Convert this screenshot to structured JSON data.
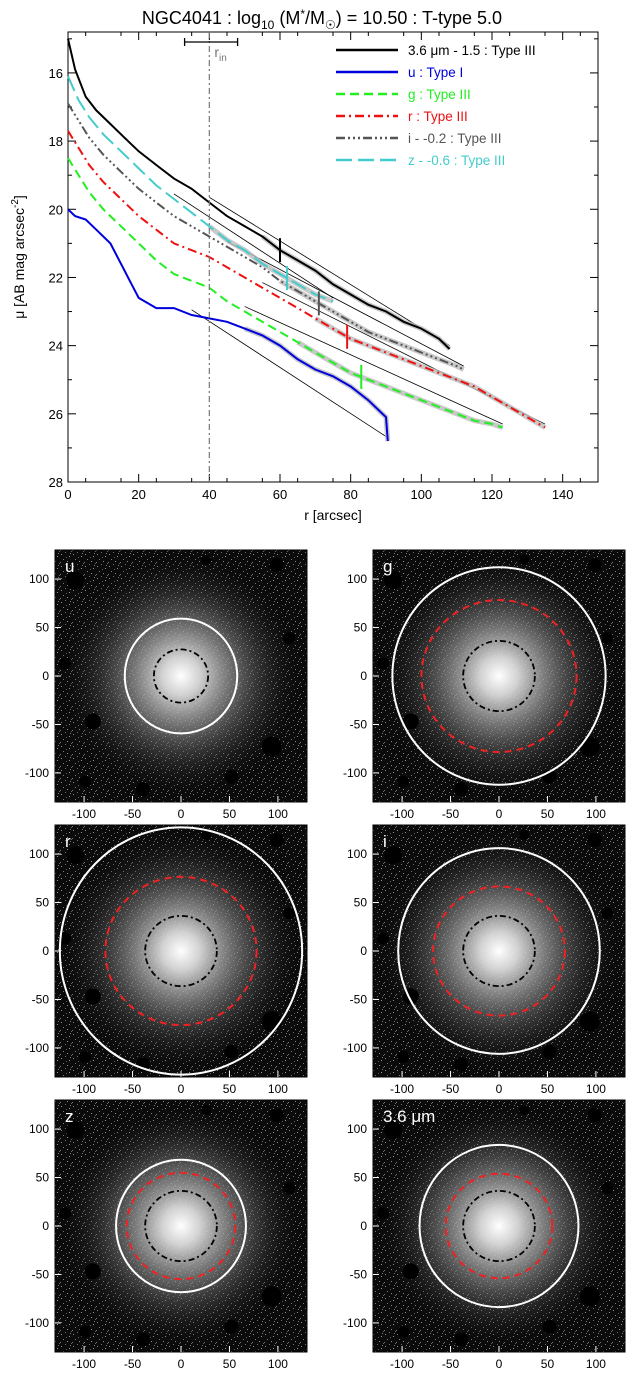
{
  "profile": {
    "title_pre": "NGC4041 : log",
    "title_sub": "10",
    "title_mid": " (M",
    "title_star": "*",
    "title_slash": "/M",
    "title_sun": "☉",
    "title_post": ") = 10.50 : T-type 5.0",
    "rin_label": "r",
    "rin_sub": "in",
    "xlabel": "r [arcsec]",
    "ylabel": "μ [AB mag arcsec",
    "ylabel_sup": "-2",
    "ylabel_end": "]"
  },
  "chart_data": [
    {
      "type": "line",
      "title": "NGC4041 : log10 (M*/M☉) = 10.50 : T-type 5.0",
      "xlabel": "r [arcsec]",
      "ylabel": "μ [AB mag arcsec-2]",
      "xlim": [
        0,
        150
      ],
      "ylim": [
        28,
        14.8
      ],
      "yreversed": true,
      "xticks": [
        0,
        20,
        40,
        60,
        80,
        100,
        120,
        140
      ],
      "yticks": [
        16,
        18,
        20,
        22,
        24,
        26,
        28
      ],
      "legend_position": "top-right",
      "r_in": 40,
      "r_in_errbar": [
        33,
        48
      ],
      "series": [
        {
          "name": "3.6 μm - 1.5 : Type III",
          "color": "#000000",
          "dash": "solid",
          "x": [
            0,
            2,
            5,
            8,
            12,
            16,
            20,
            25,
            30,
            35,
            40,
            45,
            50,
            55,
            60,
            65,
            70,
            75,
            80,
            85,
            90,
            95,
            100,
            105,
            108
          ],
          "y": [
            15.0,
            15.9,
            16.7,
            17.1,
            17.5,
            17.9,
            18.3,
            18.7,
            19.1,
            19.4,
            19.8,
            20.2,
            20.5,
            20.8,
            21.2,
            21.5,
            21.8,
            22.2,
            22.5,
            22.8,
            23.0,
            23.3,
            23.5,
            23.8,
            24.1
          ],
          "break": 60
        },
        {
          "name": "u : Type I",
          "color": "#0000dd",
          "dash": "solid",
          "x": [
            0,
            2,
            5,
            8,
            12,
            15,
            18,
            20,
            25,
            30,
            35,
            40,
            45,
            50,
            55,
            60,
            65,
            70,
            75,
            80,
            85,
            88,
            90,
            90.5
          ],
          "y": [
            20.0,
            20.2,
            20.3,
            20.6,
            21.0,
            21.6,
            22.2,
            22.6,
            22.9,
            22.9,
            23.1,
            23.2,
            23.3,
            23.5,
            23.7,
            24.0,
            24.4,
            24.7,
            24.9,
            25.2,
            25.6,
            25.9,
            26.1,
            26.8
          ]
        },
        {
          "name": "g : Type III",
          "color": "#22ee22",
          "dash": "dash",
          "x": [
            0,
            3,
            6,
            10,
            15,
            20,
            25,
            30,
            35,
            40,
            45,
            50,
            55,
            60,
            65,
            70,
            75,
            80,
            85,
            90,
            95,
            100,
            105,
            110,
            115,
            120,
            123
          ],
          "y": [
            18.5,
            19.0,
            19.5,
            20.0,
            20.5,
            21.0,
            21.5,
            21.9,
            22.1,
            22.3,
            22.7,
            23.0,
            23.3,
            23.6,
            23.9,
            24.2,
            24.5,
            24.8,
            25.0,
            25.2,
            25.4,
            25.6,
            25.8,
            26.0,
            26.2,
            26.3,
            26.4
          ],
          "break": 83
        },
        {
          "name": "r : Type III",
          "color": "#ee1111",
          "dash": "dashdot",
          "x": [
            0,
            3,
            6,
            10,
            15,
            20,
            25,
            30,
            35,
            40,
            45,
            50,
            55,
            60,
            65,
            70,
            75,
            80,
            85,
            90,
            95,
            100,
            105,
            110,
            115,
            120,
            125,
            130,
            135
          ],
          "y": [
            17.7,
            18.2,
            18.7,
            19.2,
            19.7,
            20.2,
            20.6,
            21.0,
            21.2,
            21.4,
            21.7,
            22.0,
            22.3,
            22.6,
            22.9,
            23.2,
            23.5,
            23.8,
            24.0,
            24.2,
            24.4,
            24.6,
            24.8,
            25.0,
            25.2,
            25.5,
            25.8,
            26.1,
            26.4
          ],
          "break": 79
        },
        {
          "name": "i - -0.2 : Type III",
          "color": "#555555",
          "dash": "dashdotdotdot",
          "x": [
            0,
            3,
            6,
            10,
            15,
            20,
            25,
            30,
            35,
            40,
            45,
            50,
            55,
            60,
            65,
            70,
            75,
            80,
            85,
            90,
            95,
            100,
            105,
            110,
            112
          ],
          "y": [
            16.9,
            17.4,
            17.9,
            18.4,
            18.9,
            19.4,
            19.8,
            20.2,
            20.5,
            20.8,
            21.1,
            21.4,
            21.7,
            22.1,
            22.4,
            22.7,
            23.0,
            23.3,
            23.6,
            23.8,
            24.0,
            24.2,
            24.4,
            24.6,
            24.7
          ],
          "break": 71
        },
        {
          "name": "z - -0.6 : Type III",
          "color": "#44cccc",
          "dash": "longdash",
          "x": [
            0,
            3,
            6,
            10,
            15,
            20,
            25,
            30,
            35,
            40,
            45,
            50,
            55,
            60,
            65,
            70,
            75
          ],
          "y": [
            16.1,
            16.8,
            17.3,
            17.8,
            18.3,
            18.8,
            19.3,
            19.7,
            20.1,
            20.5,
            20.9,
            21.2,
            21.6,
            21.9,
            22.2,
            22.5,
            22.7
          ],
          "break": 62
        }
      ]
    }
  ],
  "panels": [
    {
      "label": "u",
      "outer_r": 58,
      "mid_r": null,
      "inner_r": 28,
      "xticks": [
        "-100",
        "-50",
        "0",
        "50",
        "100"
      ],
      "yticks": [
        "100",
        "50",
        "0",
        "-50",
        "-100"
      ]
    },
    {
      "label": "g",
      "outer_r": 110,
      "mid_r": 80,
      "inner_r": 37,
      "xticks": [
        "-100",
        "-50",
        "0",
        "50",
        "100"
      ],
      "yticks": [
        "100",
        "50",
        "0",
        "-50",
        "-100"
      ]
    },
    {
      "label": "r",
      "outer_r": 125,
      "mid_r": 78,
      "inner_r": 37,
      "xticks": [
        "-100",
        "-50",
        "0",
        "50",
        "100"
      ],
      "yticks": [
        "100",
        "50",
        "0",
        "-50",
        "-100"
      ]
    },
    {
      "label": "i",
      "outer_r": 104,
      "mid_r": 68,
      "inner_r": 37,
      "xticks": [
        "-100",
        "-50",
        "0",
        "50",
        "100"
      ],
      "yticks": [
        "100",
        "50",
        "0",
        "-50",
        "-100"
      ]
    },
    {
      "label": "z",
      "outer_r": 67,
      "mid_r": 56,
      "inner_r": 37,
      "xticks": [
        "-100",
        "-50",
        "0",
        "50",
        "100"
      ],
      "yticks": [
        "100",
        "50",
        "0",
        "-50",
        "-100"
      ]
    },
    {
      "label": "3.6 μm",
      "outer_r": 82,
      "mid_r": 55,
      "inner_r": 37,
      "xticks": [
        "-100",
        "-50",
        "0",
        "50",
        "100"
      ],
      "yticks": [
        "100",
        "50",
        "0",
        "-50",
        "-100"
      ]
    }
  ]
}
